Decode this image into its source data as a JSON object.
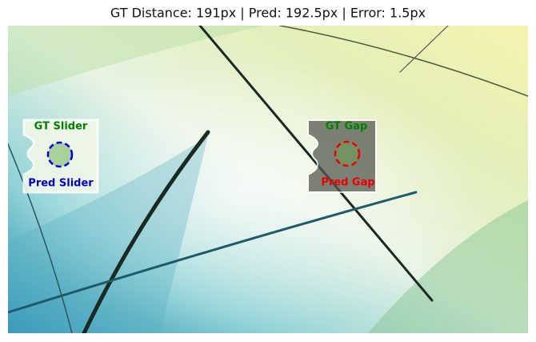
{
  "title": "GT Distance: 191px | Pred: 192.5px | Error: 1.5px",
  "slider": {
    "gt_label": "GT Slider",
    "pred_label": "Pred Slider"
  },
  "gap": {
    "gt_label": "GT Gap",
    "pred_label": "Pred Gap"
  }
}
